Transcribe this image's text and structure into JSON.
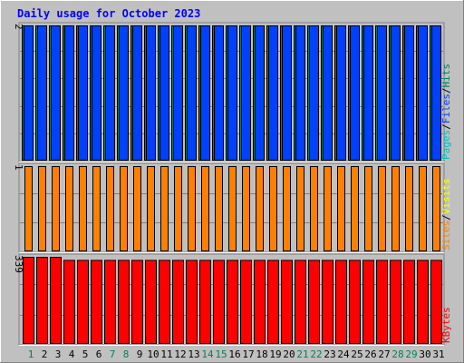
{
  "title": "Daily usage for October 2023",
  "colors": {
    "background": "#C0C0C0",
    "title": "#0000FF",
    "hits": "#00805C",
    "files": "#0040FF",
    "pages": "#00C0C0",
    "visits": "#FFFF00",
    "sites": "#FF8000",
    "kbytes": "#FF0000",
    "weekday_label": "#000000",
    "weekend_label": "#00805C",
    "legend_separator": "#000000"
  },
  "chart_data": [
    {
      "type": "bar",
      "panel": "hits-files-pages",
      "y_tick_label": "2",
      "legend": [
        "Pages",
        "Files",
        "Hits"
      ],
      "ylim": [
        0,
        2
      ],
      "series": [
        {
          "name": "Hits",
          "values": [
            2,
            2,
            2,
            2,
            2,
            2,
            2,
            2,
            2,
            2,
            2,
            2,
            2,
            2,
            2,
            2,
            2,
            2,
            2,
            2,
            2,
            2,
            2,
            2,
            2,
            2,
            2,
            2,
            2,
            2,
            2
          ]
        },
        {
          "name": "Files",
          "values": [
            2,
            2,
            2,
            2,
            2,
            2,
            2,
            2,
            2,
            2,
            2,
            2,
            2,
            2,
            2,
            2,
            2,
            2,
            2,
            2,
            2,
            2,
            2,
            2,
            2,
            2,
            2,
            2,
            2,
            2,
            2
          ]
        },
        {
          "name": "Pages",
          "values": [
            0,
            0,
            0,
            0,
            0,
            0,
            0,
            0,
            0,
            0,
            0,
            0,
            0,
            0,
            0,
            0,
            0,
            0,
            0,
            0,
            0,
            0,
            0,
            0,
            0,
            0,
            0,
            0,
            0,
            0,
            0
          ]
        }
      ]
    },
    {
      "type": "bar",
      "panel": "visits-sites",
      "y_tick_label": "1",
      "legend": [
        "Sites",
        "Visits"
      ],
      "ylim": [
        0,
        1
      ],
      "series": [
        {
          "name": "Visits",
          "values": [
            0,
            0,
            0,
            0,
            0,
            0,
            0,
            0,
            0,
            0,
            0,
            0,
            0,
            0,
            0,
            0,
            0,
            0,
            0,
            0,
            0,
            0,
            0,
            0,
            0,
            0,
            0,
            0,
            0,
            0,
            0
          ]
        },
        {
          "name": "Sites",
          "values": [
            1,
            1,
            1,
            1,
            1,
            1,
            1,
            1,
            1,
            1,
            1,
            1,
            1,
            1,
            1,
            1,
            1,
            1,
            1,
            1,
            1,
            1,
            1,
            1,
            1,
            1,
            1,
            1,
            1,
            1,
            1
          ]
        }
      ]
    },
    {
      "type": "bar",
      "panel": "kbytes",
      "y_tick_label": "339",
      "legend": [
        "KBytes"
      ],
      "ylim": [
        0,
        339
      ],
      "series": [
        {
          "name": "KBytes",
          "values": [
            339,
            339,
            339,
            327,
            327,
            327,
            327,
            327,
            327,
            327,
            327,
            327,
            327,
            327,
            327,
            327,
            327,
            327,
            327,
            327,
            327,
            327,
            327,
            327,
            327,
            327,
            327,
            327,
            327,
            327,
            327
          ]
        }
      ]
    }
  ],
  "days": [
    {
      "label": "1",
      "weekend": true
    },
    {
      "label": "2",
      "weekend": false
    },
    {
      "label": "3",
      "weekend": false
    },
    {
      "label": "4",
      "weekend": false
    },
    {
      "label": "5",
      "weekend": false
    },
    {
      "label": "6",
      "weekend": false
    },
    {
      "label": "7",
      "weekend": true
    },
    {
      "label": "8",
      "weekend": true
    },
    {
      "label": "9",
      "weekend": false
    },
    {
      "label": "10",
      "weekend": false
    },
    {
      "label": "11",
      "weekend": false
    },
    {
      "label": "12",
      "weekend": false
    },
    {
      "label": "13",
      "weekend": false
    },
    {
      "label": "14",
      "weekend": true
    },
    {
      "label": "15",
      "weekend": true
    },
    {
      "label": "16",
      "weekend": false
    },
    {
      "label": "17",
      "weekend": false
    },
    {
      "label": "18",
      "weekend": false
    },
    {
      "label": "19",
      "weekend": false
    },
    {
      "label": "20",
      "weekend": false
    },
    {
      "label": "21",
      "weekend": true
    },
    {
      "label": "22",
      "weekend": true
    },
    {
      "label": "23",
      "weekend": false
    },
    {
      "label": "24",
      "weekend": false
    },
    {
      "label": "25",
      "weekend": false
    },
    {
      "label": "26",
      "weekend": false
    },
    {
      "label": "27",
      "weekend": false
    },
    {
      "label": "28",
      "weekend": true
    },
    {
      "label": "29",
      "weekend": true
    },
    {
      "label": "30",
      "weekend": false
    },
    {
      "label": "31",
      "weekend": false
    }
  ]
}
